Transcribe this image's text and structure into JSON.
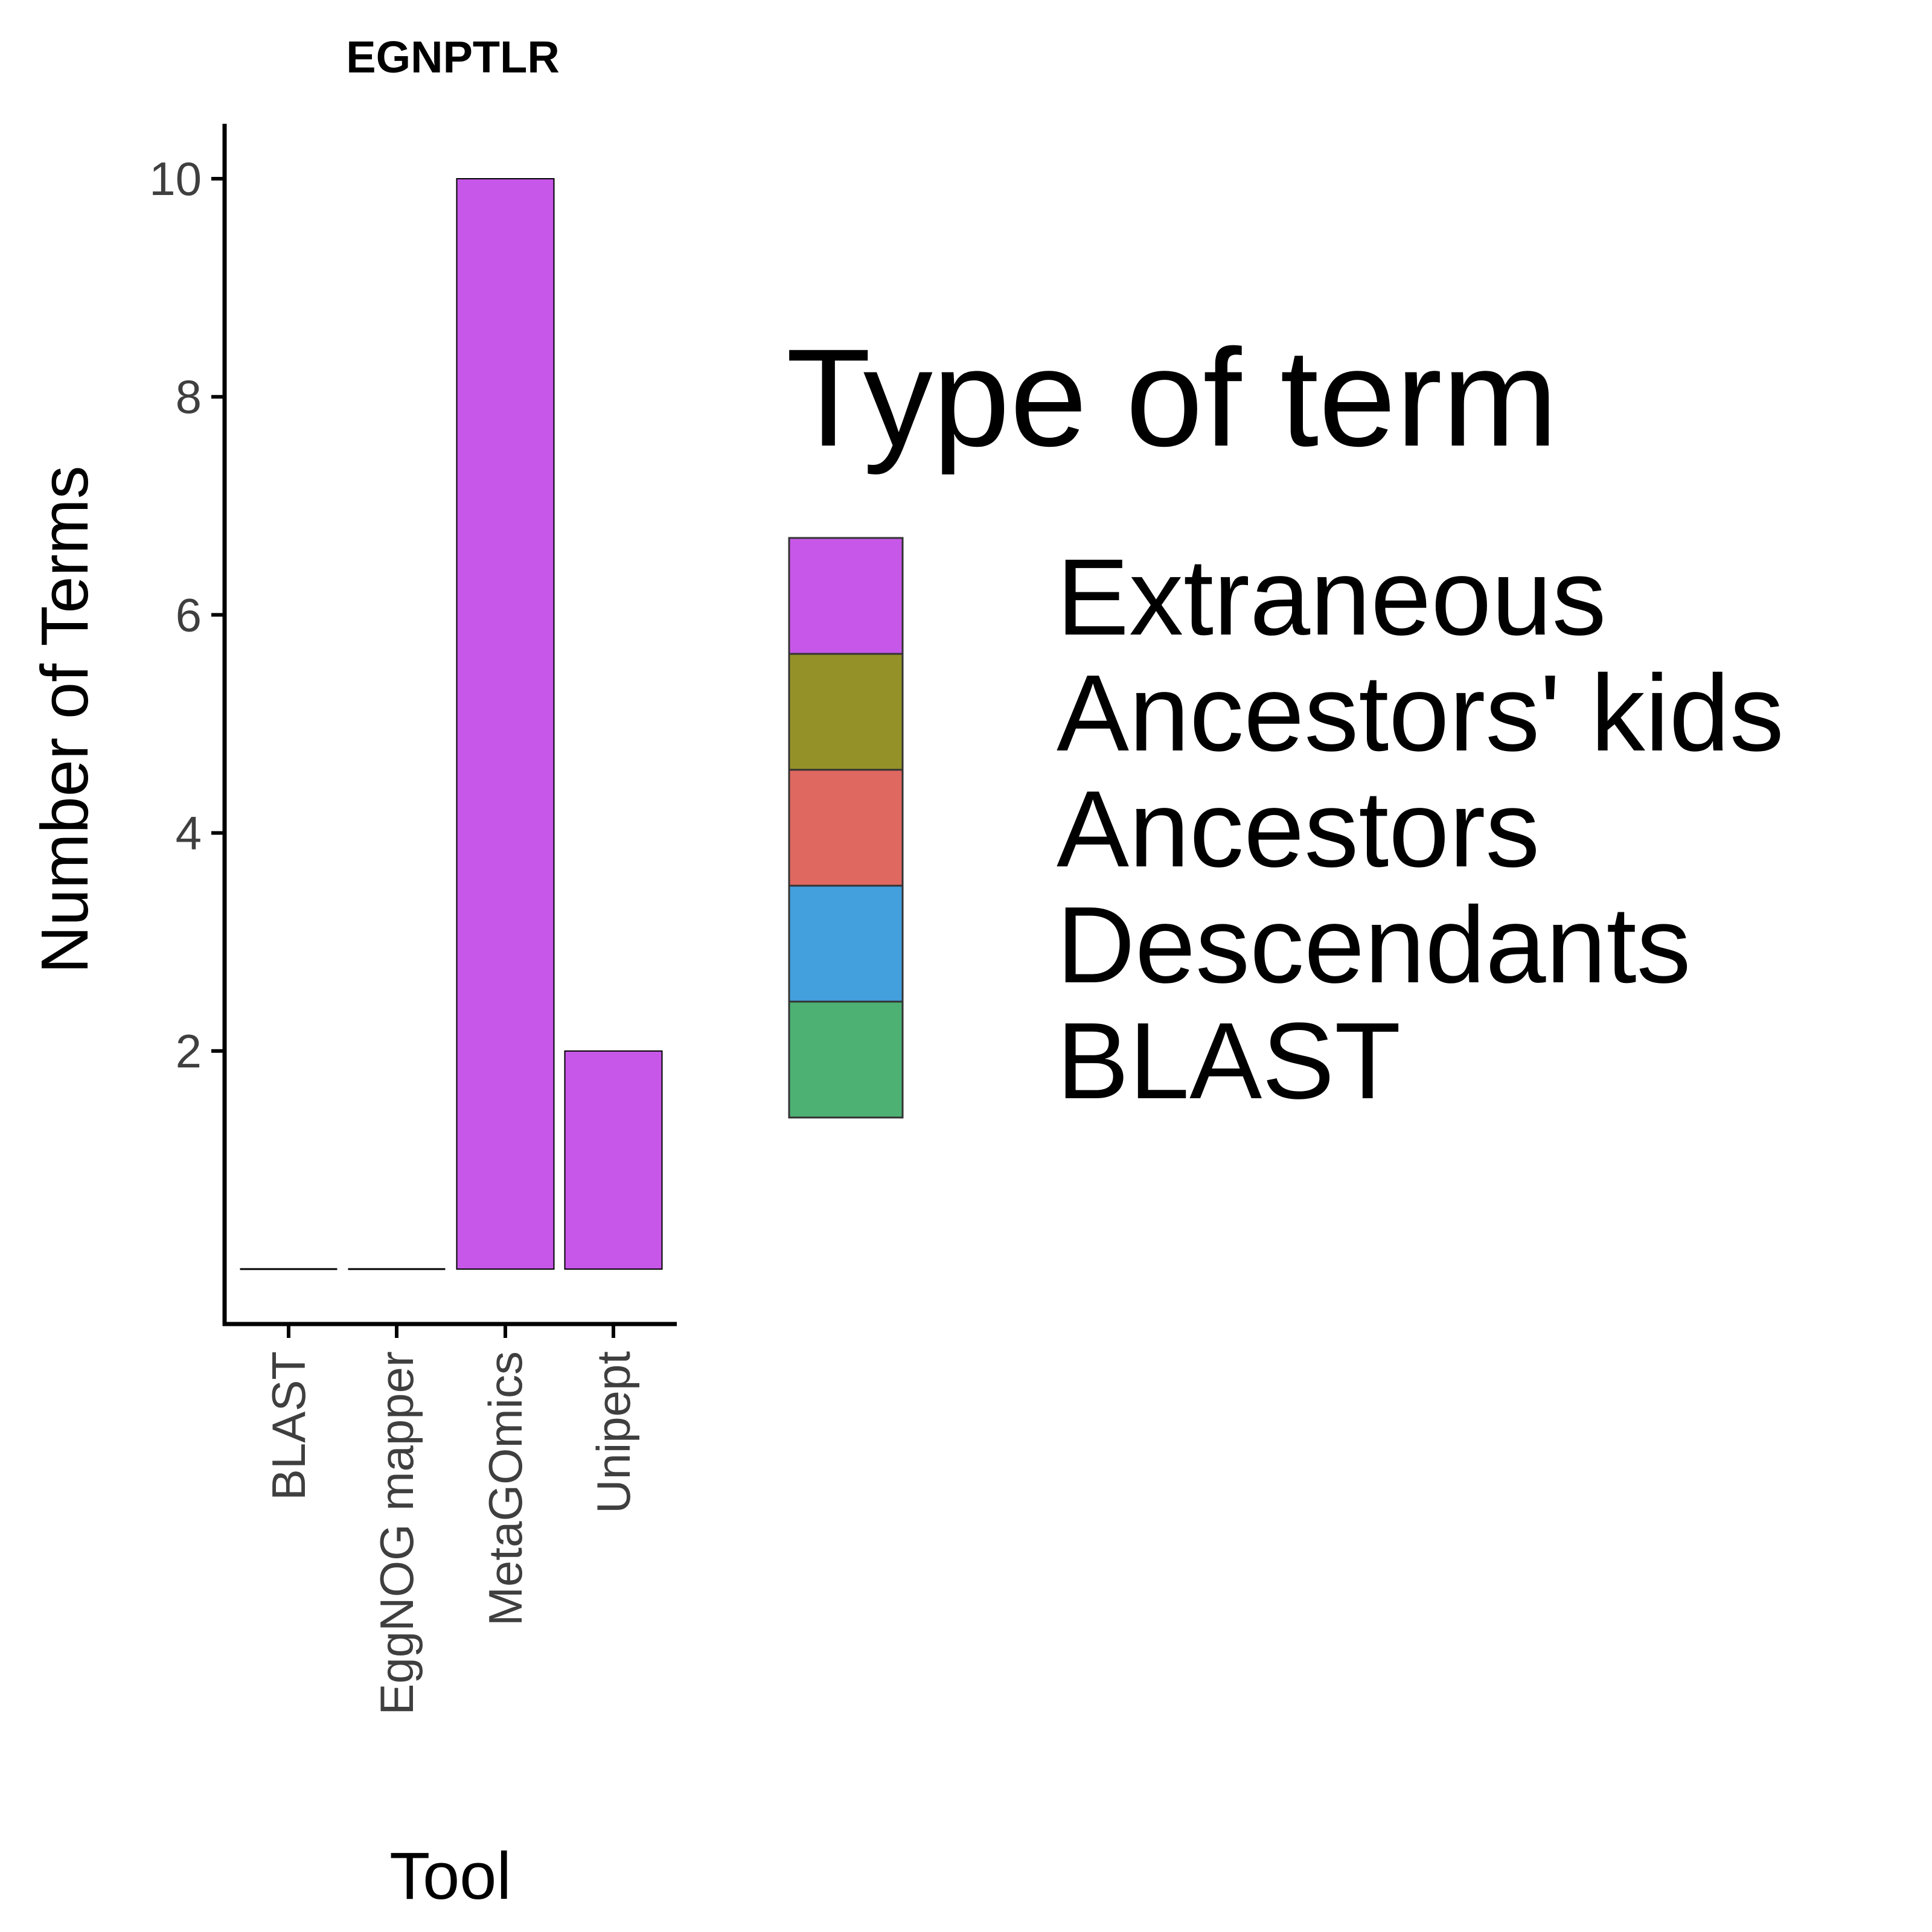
{
  "chart_data": {
    "type": "bar",
    "title": "EGNPTLR",
    "xlabel": "Tool",
    "ylabel": "Number of Terms",
    "categories": [
      "BLAST",
      "EggNOG mapper",
      "MetaGOmics",
      "Unipept"
    ],
    "series": [
      {
        "name": "Extraneous",
        "color": "#c757e8",
        "values": [
          0,
          0,
          10,
          2
        ]
      },
      {
        "name": "Ancestors' kids",
        "color": "#949128",
        "values": [
          0,
          0,
          0,
          0
        ]
      },
      {
        "name": "Ancestors",
        "color": "#df6861",
        "values": [
          0,
          0,
          0,
          0
        ]
      },
      {
        "name": "Descendants",
        "color": "#449fdd",
        "values": [
          0,
          0,
          0,
          0
        ]
      },
      {
        "name": "BLAST",
        "color": "#4cb173",
        "values": [
          0,
          0,
          0,
          0
        ]
      }
    ],
    "yticks": [
      2,
      4,
      6,
      8,
      10
    ],
    "ylim": [
      0,
      10.5
    ],
    "grid": false,
    "legend": {
      "title": "Type of term",
      "position": "right",
      "entries": [
        "Extraneous",
        "Ancestors' kids",
        "Ancestors",
        "Descendants",
        "BLAST"
      ]
    }
  }
}
